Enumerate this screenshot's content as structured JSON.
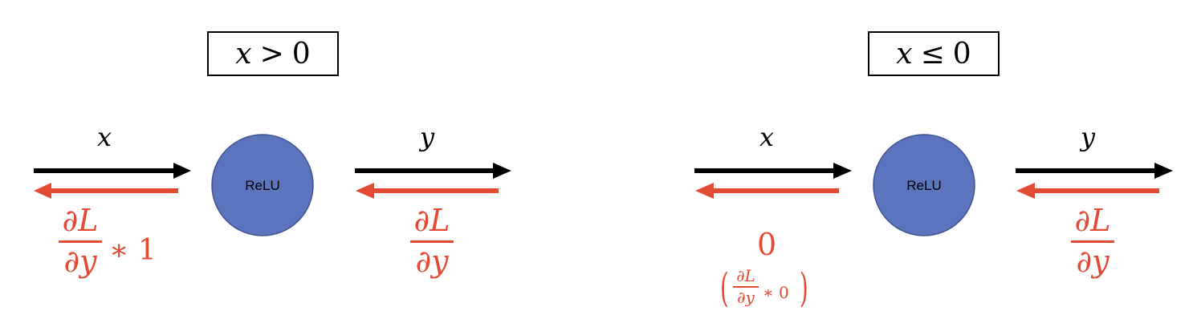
{
  "colors": {
    "forward_arrow": "#000000",
    "backward_arrow": "#e24a33",
    "node_fill": "#5b74bd",
    "node_stroke": "#3f5491",
    "gradient_text": "#e24a33"
  },
  "left_panel": {
    "condition": {
      "var": "x",
      "relation": ">",
      "value": "0"
    },
    "input_label": "x",
    "output_label": "y",
    "node_label": "ReLU",
    "output_gradient": {
      "numerator": "∂L",
      "denominator": "∂y"
    },
    "input_gradient": {
      "numerator": "∂L",
      "denominator": "∂y",
      "suffix": "∗ 1"
    }
  },
  "right_panel": {
    "condition": {
      "var": "x",
      "relation": "≤",
      "value": "0"
    },
    "input_label": "x",
    "output_label": "y",
    "node_label": "ReLU",
    "output_gradient": {
      "numerator": "∂L",
      "denominator": "∂y"
    },
    "input_gradient_value": "0",
    "input_gradient_note": {
      "open": "(",
      "numerator": "∂L",
      "denominator": "∂y",
      "suffix": "∗ 0",
      "close": ")"
    }
  }
}
